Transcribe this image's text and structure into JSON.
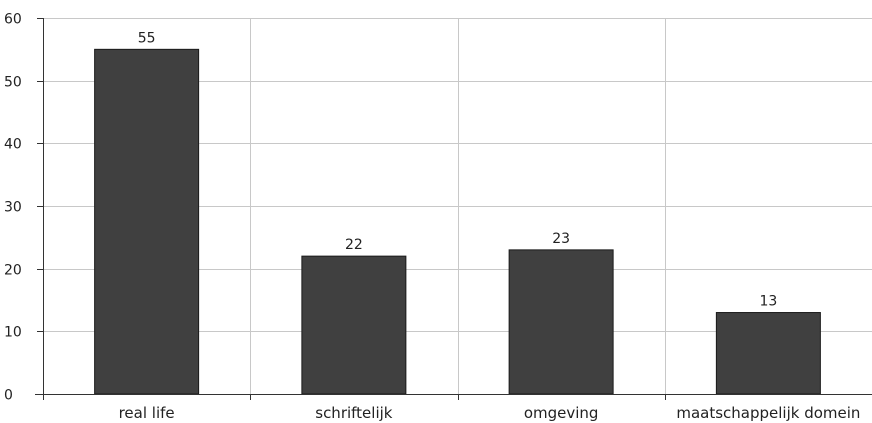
{
  "chart_data": {
    "type": "bar",
    "title": "",
    "xlabel": "",
    "ylabel": "",
    "categories": [
      "real life",
      "schriftelijk",
      "omgeving",
      "maatschappelijk domein"
    ],
    "values": [
      55,
      22,
      23,
      13
    ],
    "data_labels": [
      "55",
      "22",
      "23",
      "13"
    ],
    "ylim": [
      0,
      60
    ],
    "yticks": [
      0,
      10,
      20,
      30,
      40,
      50,
      60
    ],
    "ytick_labels": [
      "0",
      "10",
      "20",
      "30",
      "40",
      "50",
      "60"
    ],
    "grid": true,
    "legend": "none",
    "colors": {
      "bar": "#404040",
      "bar_stroke": "#1a1a1a",
      "grid": "#c8c8c8",
      "axis": "#333333"
    }
  }
}
